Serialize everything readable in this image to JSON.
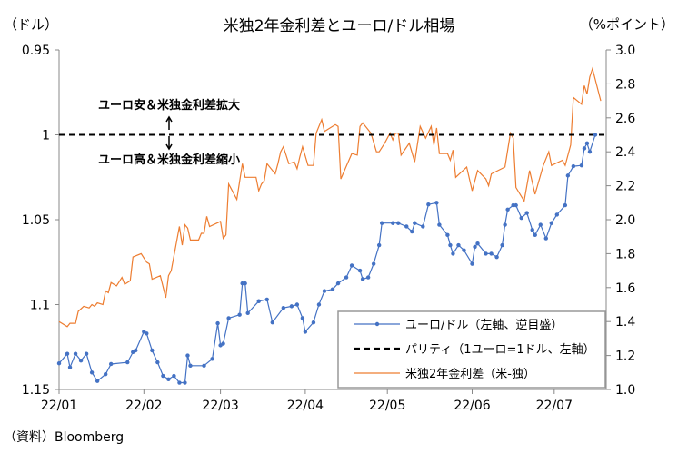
{
  "chart_data": {
    "type": "line",
    "title": "米独2年金利差とユーロ/ドル相場",
    "left_axis_label": "（ドル）",
    "right_axis_label": "（%ポイント）",
    "source": "（資料）Bloomberg",
    "x_unit": "days since 2022-01-01",
    "x_range": [
      0,
      200
    ],
    "x_ticks": [
      {
        "label": "22/01",
        "day": 0
      },
      {
        "label": "22/02",
        "day": 31
      },
      {
        "label": "22/03",
        "day": 59
      },
      {
        "label": "22/04",
        "day": 90
      },
      {
        "label": "22/05",
        "day": 120
      },
      {
        "label": "22/06",
        "day": 151
      },
      {
        "label": "22/07",
        "day": 181
      }
    ],
    "left_axis": {
      "range": [
        0.95,
        1.15
      ],
      "inverted": true,
      "ticks": [
        {
          "label": "0.95",
          "value": 0.95
        },
        {
          "label": "1",
          "value": 1.0
        },
        {
          "label": "1.05",
          "value": 1.05
        },
        {
          "label": "1.1",
          "value": 1.1
        },
        {
          "label": "1.15",
          "value": 1.15
        }
      ]
    },
    "right_axis": {
      "range": [
        1.0,
        3.0
      ],
      "ticks": [
        {
          "label": "3.0",
          "value": 3.0
        },
        {
          "label": "2.8",
          "value": 2.8
        },
        {
          "label": "2.6",
          "value": 2.6
        },
        {
          "label": "2.4",
          "value": 2.4
        },
        {
          "label": "2.2",
          "value": 2.2
        },
        {
          "label": "2.0",
          "value": 2.0
        },
        {
          "label": "1.8",
          "value": 1.8
        },
        {
          "label": "1.6",
          "value": 1.6
        },
        {
          "label": "1.4",
          "value": 1.4
        },
        {
          "label": "1.2",
          "value": 1.2
        },
        {
          "label": "1.0",
          "value": 1.0
        }
      ]
    },
    "annotations": {
      "up": "ユーロ安＆米独金利差拡大",
      "down": "ユーロ高＆米独金利差縮小"
    },
    "legend_position": "bottom-right",
    "series": [
      {
        "name": "ユーロ/ドル（左軸、逆目盛）",
        "axis": "left",
        "color": "#4472C4",
        "marker": true,
        "points": [
          [
            0,
            1.1346
          ],
          [
            3,
            1.129
          ],
          [
            4,
            1.137
          ],
          [
            6,
            1.129
          ],
          [
            8,
            1.133
          ],
          [
            10,
            1.129
          ],
          [
            12,
            1.14
          ],
          [
            14,
            1.145
          ],
          [
            17,
            1.141
          ],
          [
            19,
            1.135
          ],
          [
            25,
            1.134
          ],
          [
            27,
            1.128
          ],
          [
            28,
            1.127
          ],
          [
            31,
            1.116
          ],
          [
            32,
            1.117
          ],
          [
            34,
            1.127
          ],
          [
            36,
            1.134
          ],
          [
            38,
            1.142
          ],
          [
            40,
            1.144
          ],
          [
            42,
            1.142
          ],
          [
            44,
            1.146
          ],
          [
            46,
            1.146
          ],
          [
            47,
            1.13
          ],
          [
            48,
            1.136
          ],
          [
            53,
            1.136
          ],
          [
            56,
            1.132
          ],
          [
            58,
            1.111
          ],
          [
            59,
            1.124
          ],
          [
            60,
            1.123
          ],
          [
            62,
            1.108
          ],
          [
            66,
            1.106
          ],
          [
            67,
            1.0875
          ],
          [
            68,
            1.0875
          ],
          [
            69,
            1.105
          ],
          [
            73,
            1.098
          ],
          [
            76,
            1.097
          ],
          [
            78,
            1.1105
          ],
          [
            82,
            1.102
          ],
          [
            85,
            1.101
          ],
          [
            87,
            1.1
          ],
          [
            89,
            1.108
          ],
          [
            90,
            1.116
          ],
          [
            93,
            1.1105
          ],
          [
            95,
            1.1
          ],
          [
            97,
            1.092
          ],
          [
            100,
            1.091
          ],
          [
            102,
            1.0875
          ],
          [
            105,
            1.084
          ],
          [
            107,
            1.077
          ],
          [
            110,
            1.08
          ],
          [
            111,
            1.085
          ],
          [
            113,
            1.084
          ],
          [
            115,
            1.076
          ],
          [
            117,
            1.065
          ],
          [
            118,
            1.052
          ],
          [
            122,
            1.052
          ],
          [
            124,
            1.052
          ],
          [
            127,
            1.054
          ],
          [
            129,
            1.057
          ],
          [
            130,
            1.052
          ],
          [
            133,
            1.054
          ],
          [
            135,
            1.041
          ],
          [
            138,
            1.04
          ],
          [
            139,
            1.053
          ],
          [
            142,
            1.059
          ],
          [
            143,
            1.065
          ],
          [
            144,
            1.07
          ],
          [
            146,
            1.065
          ],
          [
            148,
            1.068
          ],
          [
            151,
            1.076
          ],
          [
            152,
            1.066
          ],
          [
            153,
            1.064
          ],
          [
            156,
            1.07
          ],
          [
            158,
            1.07
          ],
          [
            160,
            1.072
          ],
          [
            162,
            1.065
          ],
          [
            163,
            1.053
          ],
          [
            164,
            1.044
          ],
          [
            166,
            1.0415
          ],
          [
            167,
            1.0415
          ],
          [
            169,
            1.049
          ],
          [
            171,
            1.046
          ],
          [
            173,
            1.056
          ],
          [
            174,
            1.059
          ],
          [
            176,
            1.053
          ],
          [
            178,
            1.061
          ],
          [
            180,
            1.052
          ],
          [
            182,
            1.047
          ],
          [
            185,
            1.0415
          ],
          [
            186,
            1.024
          ],
          [
            188,
            1.0185
          ],
          [
            191,
            1.018
          ],
          [
            192,
            1.008
          ],
          [
            193,
            1.005
          ],
          [
            194,
            1.01
          ],
          [
            196,
            1.0
          ]
        ]
      },
      {
        "name": "パリティ（1ユーロ=1ドル、左軸）",
        "axis": "left",
        "color": "#000000",
        "dashed": true,
        "points": [
          [
            0,
            1.0
          ],
          [
            200,
            1.0
          ]
        ]
      },
      {
        "name": "米独2年金利差（米-独）",
        "axis": "right",
        "color": "#ED7D31",
        "points": [
          [
            0,
            1.4
          ],
          [
            3,
            1.37
          ],
          [
            4,
            1.39
          ],
          [
            6,
            1.39
          ],
          [
            7,
            1.46
          ],
          [
            9,
            1.49
          ],
          [
            11,
            1.48
          ],
          [
            12,
            1.5
          ],
          [
            13,
            1.49
          ],
          [
            14,
            1.51
          ],
          [
            16,
            1.5
          ],
          [
            17,
            1.58
          ],
          [
            18,
            1.57
          ],
          [
            19,
            1.63
          ],
          [
            21,
            1.61
          ],
          [
            23,
            1.66
          ],
          [
            24,
            1.62
          ],
          [
            26,
            1.64
          ],
          [
            27,
            1.78
          ],
          [
            30,
            1.8
          ],
          [
            32,
            1.75
          ],
          [
            33,
            1.74
          ],
          [
            34,
            1.65
          ],
          [
            37,
            1.67
          ],
          [
            39,
            1.54
          ],
          [
            40,
            1.67
          ],
          [
            41,
            1.7
          ],
          [
            44,
            1.96
          ],
          [
            45,
            1.85
          ],
          [
            46,
            1.97
          ],
          [
            47,
            1.95
          ],
          [
            48,
            1.88
          ],
          [
            51,
            1.88
          ],
          [
            52,
            1.92
          ],
          [
            53,
            1.92
          ],
          [
            54,
            2.02
          ],
          [
            55,
            1.96
          ],
          [
            59,
            1.99
          ],
          [
            60,
            1.89
          ],
          [
            61,
            1.91
          ],
          [
            62,
            2.21
          ],
          [
            65,
            2.12
          ],
          [
            67,
            2.33
          ],
          [
            68,
            2.25
          ],
          [
            72,
            2.25
          ],
          [
            73,
            2.17
          ],
          [
            74,
            2.21
          ],
          [
            75,
            2.23
          ],
          [
            76,
            2.33
          ],
          [
            79,
            2.27
          ],
          [
            80,
            2.33
          ],
          [
            81,
            2.4
          ],
          [
            82,
            2.43
          ],
          [
            84,
            2.33
          ],
          [
            86,
            2.34
          ],
          [
            87,
            2.3
          ],
          [
            88,
            2.37
          ],
          [
            89,
            2.43
          ],
          [
            91,
            2.32
          ],
          [
            92,
            2.32
          ],
          [
            93,
            2.32
          ],
          [
            94,
            2.51
          ],
          [
            96,
            2.59
          ],
          [
            97,
            2.52
          ],
          [
            101,
            2.56
          ],
          [
            102,
            2.55
          ],
          [
            103,
            2.24
          ],
          [
            107,
            2.39
          ],
          [
            109,
            2.38
          ],
          [
            110,
            2.55
          ],
          [
            111,
            2.57
          ],
          [
            114,
            2.51
          ],
          [
            116,
            2.4
          ],
          [
            117,
            2.4
          ],
          [
            119,
            2.45
          ],
          [
            121,
            2.51
          ],
          [
            122,
            2.47
          ],
          [
            123,
            2.51
          ],
          [
            124,
            2.51
          ],
          [
            125,
            2.38
          ],
          [
            128,
            2.45
          ],
          [
            130,
            2.34
          ],
          [
            132,
            2.55
          ],
          [
            134,
            2.48
          ],
          [
            136,
            2.55
          ],
          [
            137,
            2.44
          ],
          [
            138,
            2.54
          ],
          [
            139,
            2.39
          ],
          [
            142,
            2.39
          ],
          [
            143,
            2.35
          ],
          [
            144,
            2.41
          ],
          [
            145,
            2.25
          ],
          [
            149,
            2.31
          ],
          [
            151,
            2.17
          ],
          [
            153,
            2.29
          ],
          [
            156,
            2.24
          ],
          [
            157,
            2.2
          ],
          [
            158,
            2.27
          ],
          [
            163,
            2.31
          ],
          [
            165,
            2.51
          ],
          [
            166,
            2.48
          ],
          [
            167,
            2.19
          ],
          [
            170,
            2.11
          ],
          [
            172,
            2.29
          ],
          [
            174,
            2.15
          ],
          [
            177,
            2.32
          ],
          [
            179,
            2.4
          ],
          [
            180,
            2.32
          ],
          [
            184,
            2.35
          ],
          [
            185,
            2.32
          ],
          [
            187,
            2.44
          ],
          [
            188,
            2.72
          ],
          [
            191,
            2.68
          ],
          [
            192,
            2.79
          ],
          [
            193,
            2.74
          ],
          [
            194,
            2.84
          ],
          [
            195,
            2.89
          ],
          [
            198,
            2.7
          ]
        ]
      }
    ]
  }
}
